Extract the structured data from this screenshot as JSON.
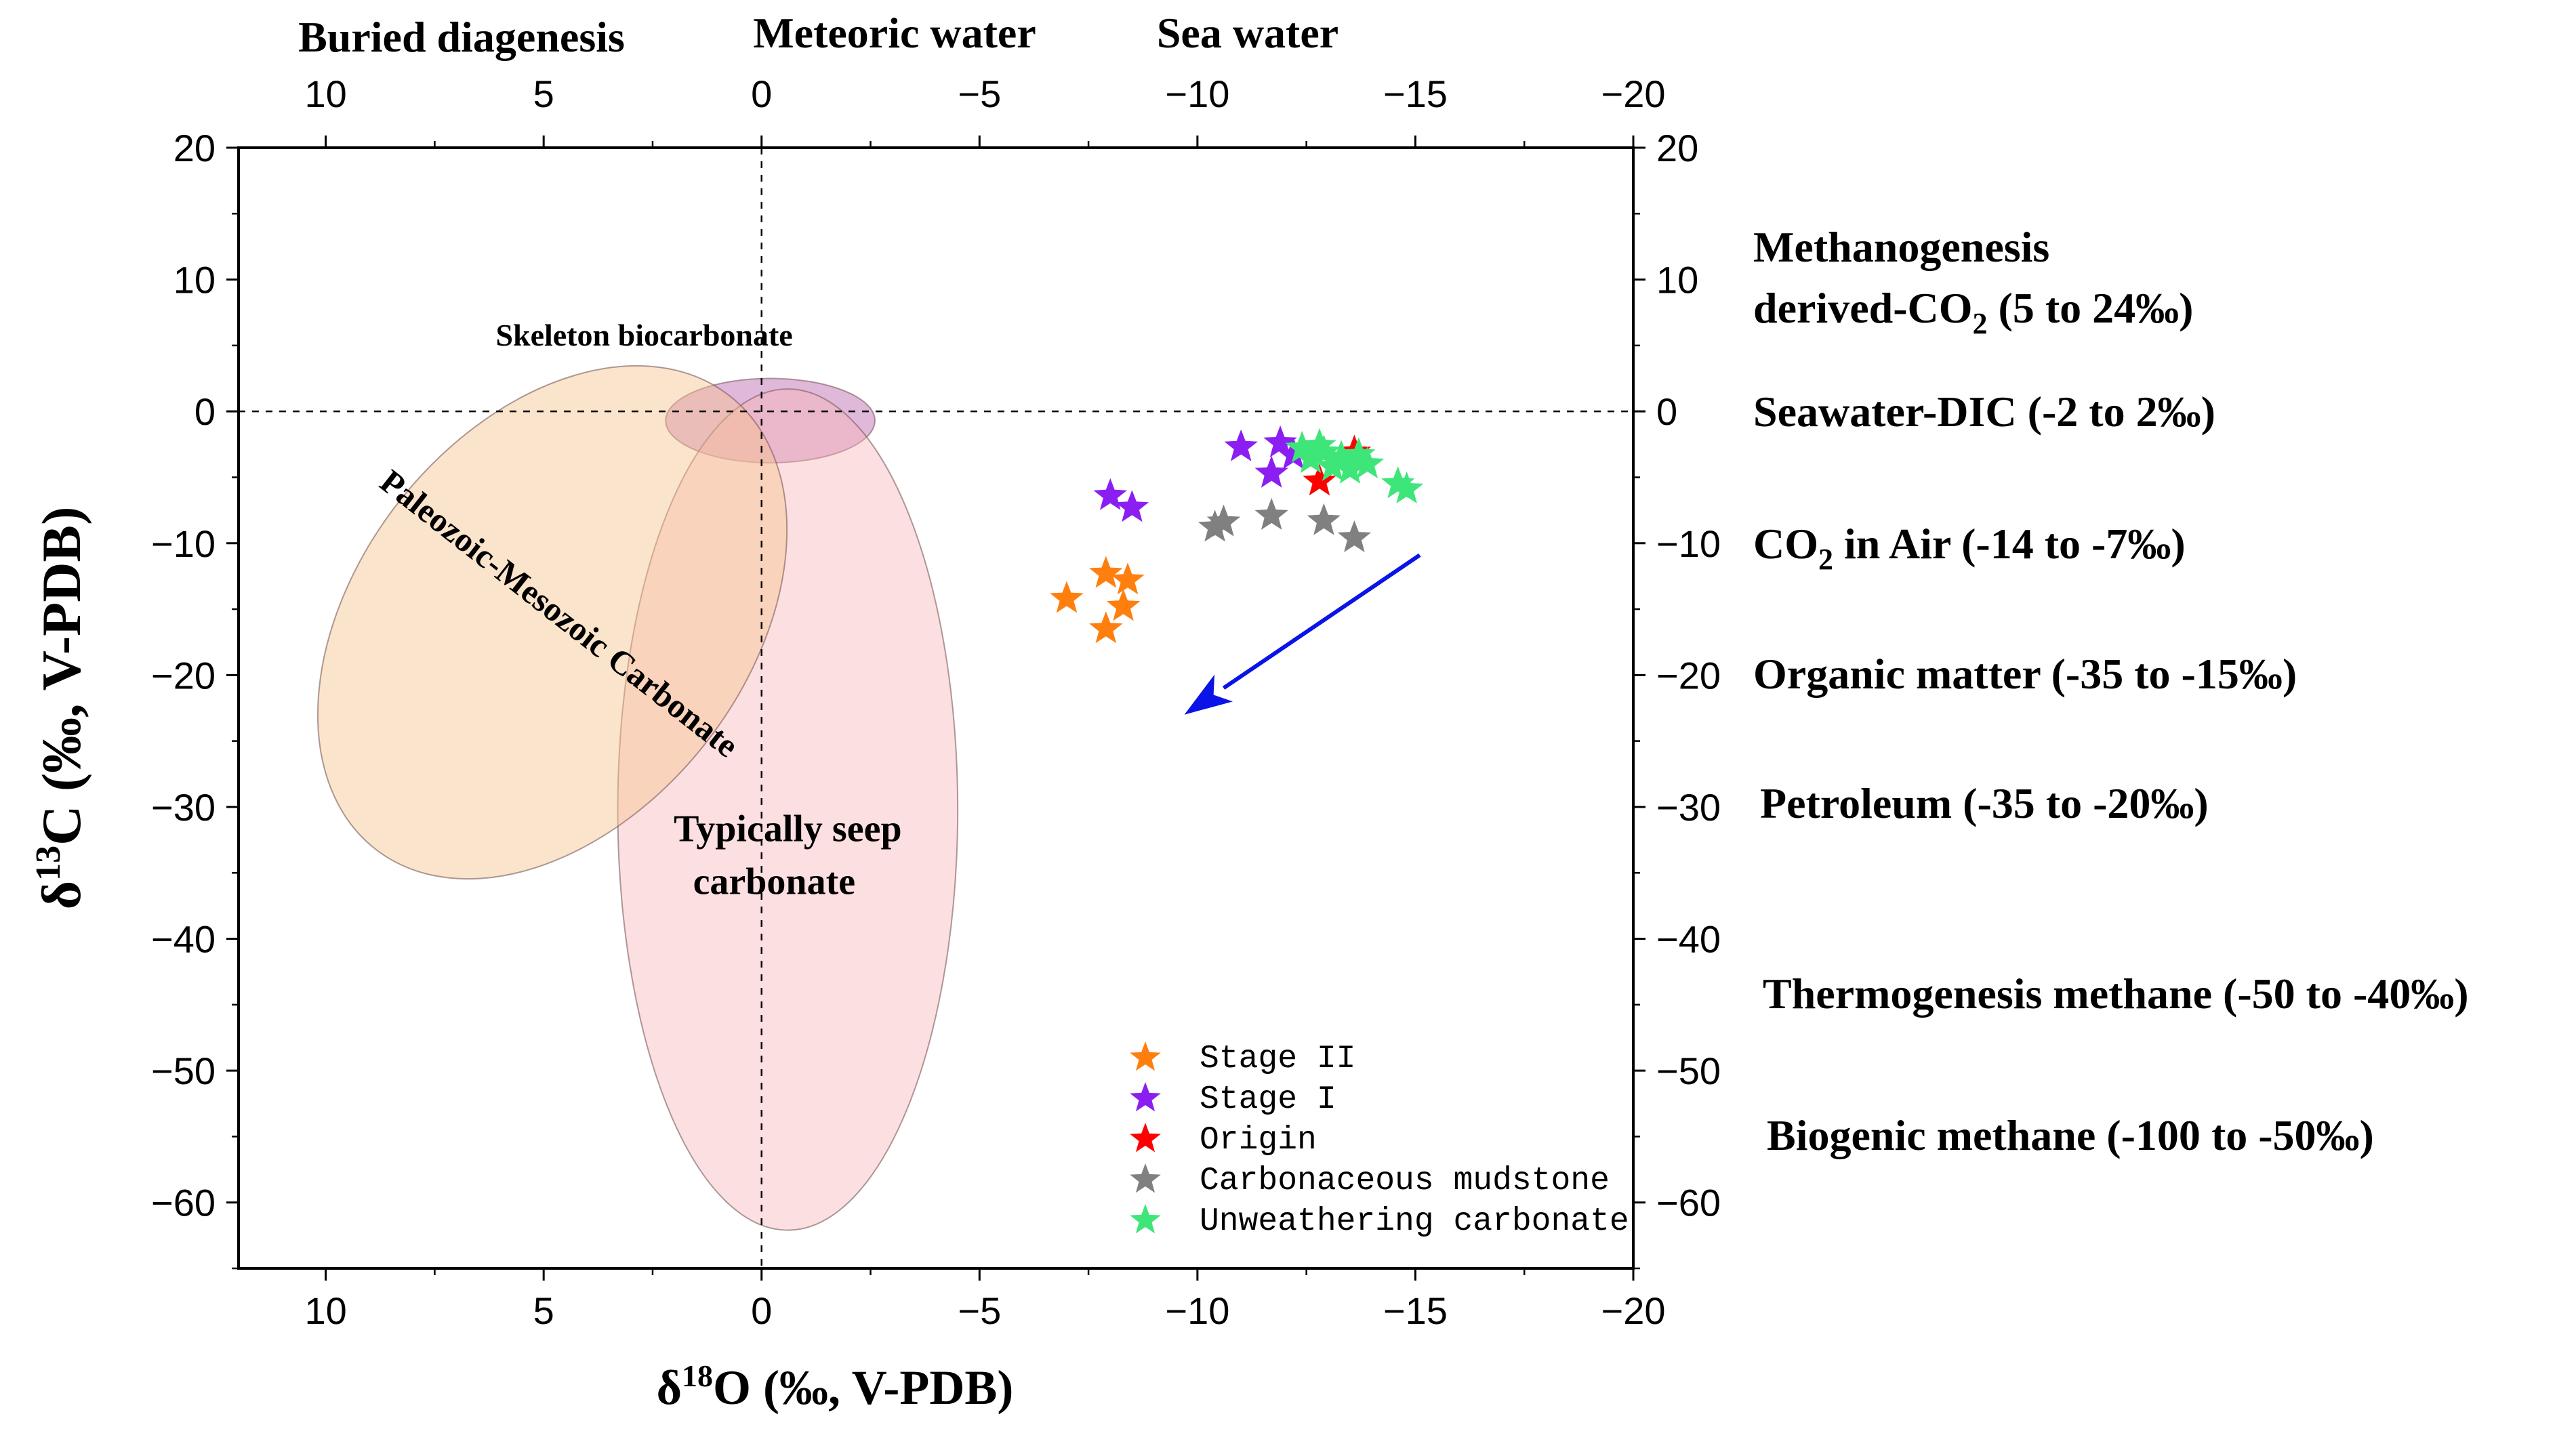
{
  "chart_data": {
    "type": "scatter",
    "xlabel_main": "δ",
    "xlabel_sup": "18",
    "xlabel_rest": "O (‰, V-PDB)",
    "ylabel_main": "δ",
    "ylabel_sup": "13",
    "ylabel_rest": "C (‰, V-PDB)",
    "xlim": [
      12,
      -20
    ],
    "ylim": [
      -65,
      20
    ],
    "x_ticks": [
      10,
      5,
      0,
      -5,
      -10,
      -15,
      -20
    ],
    "x_tick_labels": [
      "10",
      "5",
      "0",
      "−5",
      "−10",
      "−15",
      "−20"
    ],
    "y_ticks": [
      20,
      10,
      0,
      -10,
      -20,
      -30,
      -40,
      -50,
      -60
    ],
    "y_tick_labels": [
      "20",
      "10",
      "0",
      "−10",
      "−20",
      "−30",
      "−40",
      "−50",
      "−60"
    ],
    "top_regions": [
      "Buried diagenesis",
      "Meteoric water",
      "Sea water"
    ],
    "right_labels": [
      {
        "line1": "Methanogenesis",
        "line2_main": "derived-CO",
        "line2_sub": "2",
        "line2_rest": " (5 to 24‰)",
        "y": 10
      },
      {
        "line1": "Seawater-DIC (-2 to 2‰)",
        "y": 0
      },
      {
        "line1_main": "CO",
        "line1_sub": "2",
        "line1_rest": "  in Air (-14 to -7‰)",
        "y": -10
      },
      {
        "line1": "Organic matter (-35 to -15‰)",
        "y": -20
      },
      {
        "line1": "Petroleum (-35 to -20‰)",
        "y": -30
      },
      {
        "line1": "Thermogenesis methane (-50 to -40‰)",
        "y": -44.5
      },
      {
        "line1": "Biogenic methane (-100 to -50‰)",
        "y": -55.3
      }
    ],
    "regions": [
      {
        "name": "Skeleton biocarbonate",
        "cx": -0.2,
        "cy": -0.7,
        "rx": 2.4,
        "ry": 3.2,
        "angle": 0,
        "fill": "#c77dbb",
        "opacity": 0.55,
        "label_color": "#8b1a8b",
        "label_x": 6.1,
        "label_y": 5.0
      },
      {
        "name": "Typically seep carbonate",
        "cx": -0.6,
        "cy": -30.2,
        "rx": 3.9,
        "ry": 31.9,
        "angle": 0,
        "fill": "#f8b4b8",
        "opacity": 0.42,
        "label_lines": [
          "Typically seep",
          "carbonate"
        ],
        "label_x": -0.6,
        "label_y": -32.6
      },
      {
        "name": "Paleozoic-Mesozoic Carbonate",
        "cx": 4.8,
        "cy": -16.0,
        "rx": 6.6,
        "ry": 14.8,
        "angle": -52,
        "fill": "#f6c48f",
        "opacity": 0.45
      }
    ],
    "arrow": {
      "from": [
        -15.1,
        -10.9
      ],
      "to": [
        -9.7,
        -23.0
      ],
      "color": "#0a14e6"
    },
    "series": [
      {
        "name": "Stage II",
        "color": "#ff7f0e",
        "points": [
          [
            -7.0,
            -14.2
          ],
          [
            -7.9,
            -12.3
          ],
          [
            -8.4,
            -12.8
          ],
          [
            -8.3,
            -14.8
          ],
          [
            -7.9,
            -16.5
          ]
        ]
      },
      {
        "name": "Stage I",
        "color": "#8b1ff2",
        "points": [
          [
            -8.0,
            -6.4
          ],
          [
            -8.5,
            -7.3
          ],
          [
            -11.0,
            -2.7
          ],
          [
            -11.9,
            -2.4
          ],
          [
            -12.2,
            -3.3
          ],
          [
            -11.7,
            -4.7
          ]
        ]
      },
      {
        "name": "Origin",
        "color": "#ff0000",
        "points": [
          [
            -12.8,
            -5.3
          ],
          [
            -13.6,
            -3.1
          ]
        ]
      },
      {
        "name": "Carbonaceous mudstone",
        "color": "#808080",
        "points": [
          [
            -10.6,
            -8.4
          ],
          [
            -10.4,
            -8.8
          ],
          [
            -11.7,
            -7.9
          ],
          [
            -12.9,
            -8.3
          ],
          [
            -13.6,
            -9.6
          ]
        ]
      },
      {
        "name": "Unweathering carbonate",
        "color": "#3ee67a",
        "points": [
          [
            -12.4,
            -2.8
          ],
          [
            -12.6,
            -3.6
          ],
          [
            -12.9,
            -3.1
          ],
          [
            -13.1,
            -4.2
          ],
          [
            -13.3,
            -3.5
          ],
          [
            -13.5,
            -4.4
          ],
          [
            -13.7,
            -3.3
          ],
          [
            -13.9,
            -4.0
          ],
          [
            -14.6,
            -5.5
          ],
          [
            -14.8,
            -5.9
          ],
          [
            -12.8,
            -2.6
          ]
        ]
      }
    ]
  }
}
